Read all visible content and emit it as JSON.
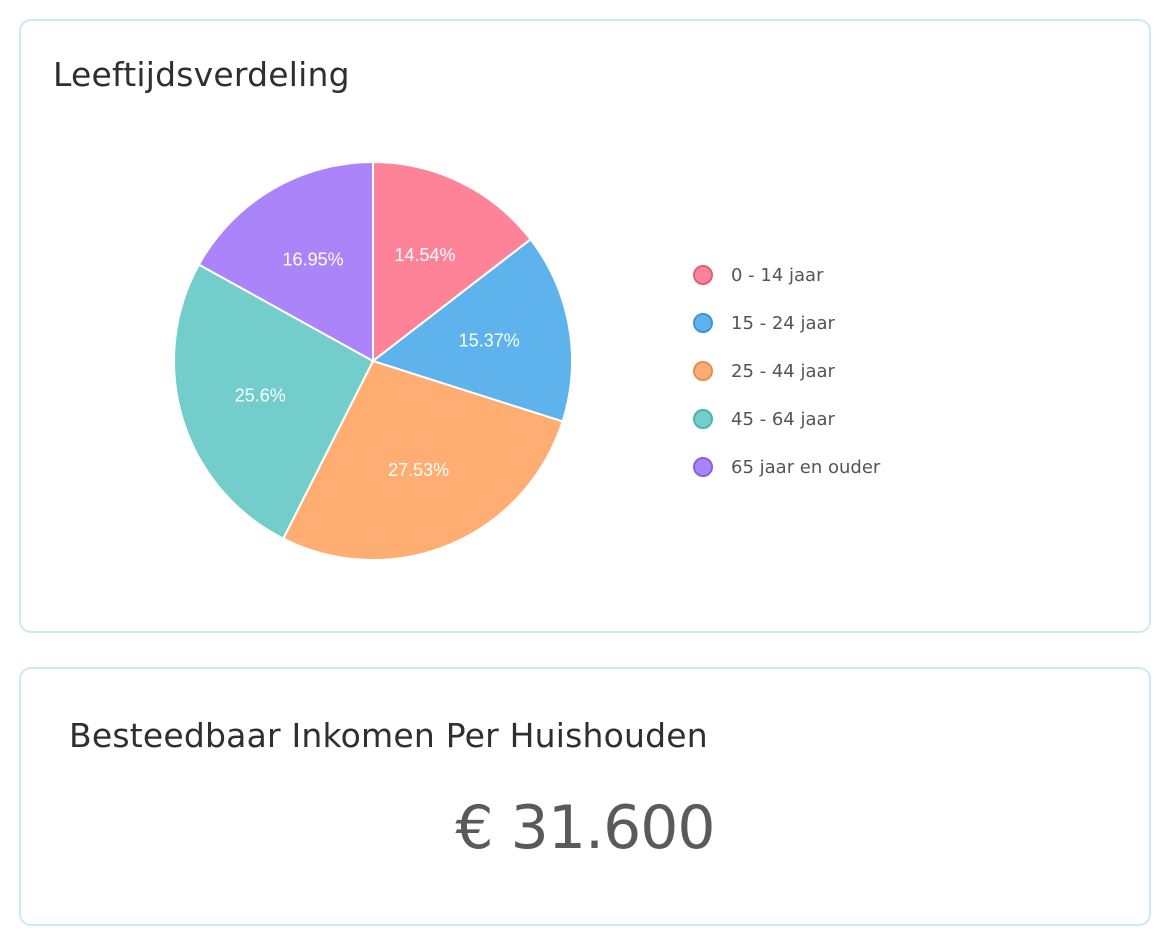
{
  "age_card": {
    "title": "Leeftijdsverdeling"
  },
  "income_card": {
    "title": "Besteedbaar Inkomen Per Huishouden",
    "value": "€ 31.600"
  },
  "chart_data": {
    "type": "pie",
    "title": "Leeftijdsverdeling",
    "legend_position": "right",
    "categories": [
      "0 - 14 jaar",
      "15 - 24 jaar",
      "25 - 44 jaar",
      "45 - 64 jaar",
      "65 jaar en ouder"
    ],
    "values": [
      14.54,
      15.37,
      27.53,
      25.6,
      16.95
    ],
    "labels": [
      "14.54%",
      "15.37%",
      "27.53%",
      "25.6%",
      "16.95%"
    ],
    "colors": [
      "#ff8398",
      "#5eb3ec",
      "#ffad73",
      "#72cdcb",
      "#aa84f8"
    ],
    "border_colors": [
      "#e0607a",
      "#3a95d4",
      "#e98c4d",
      "#4fb1ae",
      "#8a60e2"
    ]
  }
}
